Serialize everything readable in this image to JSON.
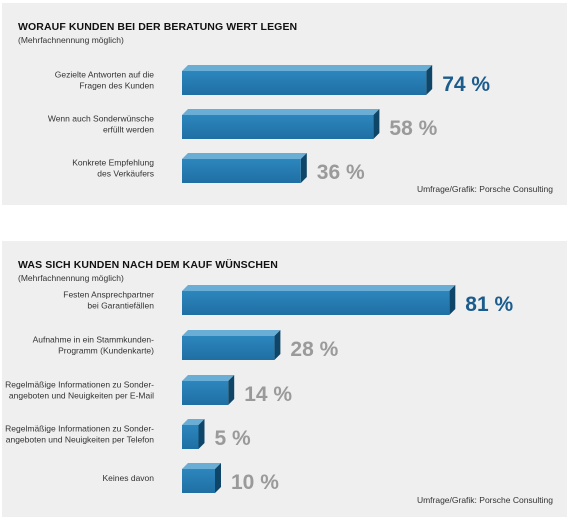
{
  "colors": {
    "bar_front": "#1f6fa3",
    "bar_top": "#6aaed6",
    "bar_side": "#0f4668",
    "highlight_value": "#1b5c8c",
    "other_value": "#9a9a9a"
  },
  "chart_data": [
    {
      "type": "bar",
      "title": "WORAUF KUNDEN BEI DER BERATUNG WERT LEGEN",
      "subtitle": "(Mehrfachnennung möglich)",
      "source": "Umfrage/Grafik: Porsche Consulting",
      "categories": [
        [
          "Gezielte Antworten auf die",
          "Fragen des Kunden"
        ],
        [
          "Wenn auch Sonderwünsche",
          "erfüllt werden"
        ],
        [
          "Konkrete Empfehlung",
          "des Verkäufers"
        ]
      ],
      "values": [
        74,
        58,
        36
      ],
      "value_labels": [
        "74 %",
        "58 %",
        "36 %"
      ],
      "highlight_index": 0,
      "xlim": [
        0,
        100
      ]
    },
    {
      "type": "bar",
      "title": "WAS SICH KUNDEN NACH DEM KAUF WÜNSCHEN",
      "subtitle": "(Mehrfachnennung möglich)",
      "source": "Umfrage/Grafik: Porsche Consulting",
      "categories": [
        [
          "Festen Ansprechpartner",
          "bei Garantiefällen"
        ],
        [
          "Aufnahme in ein Stammkunden-",
          "Programm (Kundenkarte)"
        ],
        [
          "Regelmäßige Informationen zu Sonder-",
          "angeboten und Neuigkeiten per E-Mail"
        ],
        [
          "Regelmäßige Informationen zu Sonder-",
          "angeboten und Neuigkeiten per Telefon"
        ],
        [
          "Keines davon"
        ]
      ],
      "values": [
        81,
        28,
        14,
        5,
        10
      ],
      "value_labels": [
        "81 %",
        "28 %",
        "14 %",
        "5 %",
        "10 %"
      ],
      "highlight_index": 0,
      "xlim": [
        0,
        100
      ]
    }
  ]
}
